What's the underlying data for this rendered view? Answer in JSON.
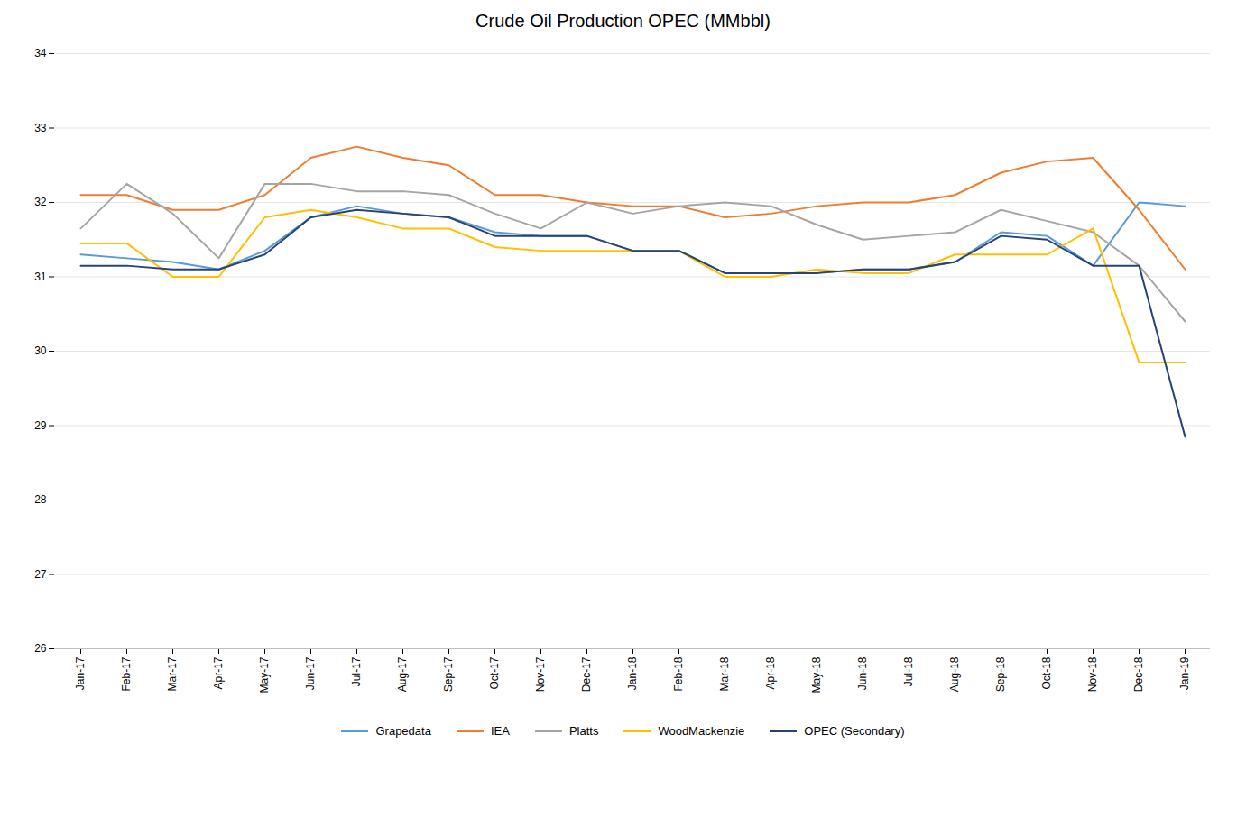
{
  "chart_data": {
    "type": "line",
    "title": "Crude Oil Production OPEC (MMbbl)",
    "categories": [
      "Jan-17",
      "Feb-17",
      "Mar-17",
      "Apr-17",
      "May-17",
      "Jun-17",
      "Jul-17",
      "Aug-17",
      "Sep-17",
      "Oct-17",
      "Nov-17",
      "Dec-17",
      "Jan-18",
      "Feb-18",
      "Mar-18",
      "Apr-18",
      "May-18",
      "Jun-18",
      "Jul-18",
      "Aug-18",
      "Sep-18",
      "Oct-18",
      "Nov-18",
      "Dec-18",
      "Jan-19"
    ],
    "series": [
      {
        "name": "Grapedata",
        "color": "#5B9BD5",
        "values": [
          31.3,
          31.25,
          31.2,
          31.1,
          31.35,
          31.8,
          31.95,
          31.85,
          31.8,
          31.6,
          31.55,
          31.55,
          31.35,
          31.35,
          31.05,
          31.05,
          31.05,
          31.1,
          31.1,
          31.2,
          31.6,
          31.55,
          31.15,
          32.0,
          31.95
        ]
      },
      {
        "name": "IEA",
        "color": "#ED7D31",
        "values": [
          32.1,
          32.1,
          31.9,
          31.9,
          32.1,
          32.6,
          32.75,
          32.6,
          32.5,
          32.1,
          32.1,
          32.0,
          31.95,
          31.95,
          31.8,
          31.85,
          31.95,
          32.0,
          32.0,
          32.1,
          32.4,
          32.55,
          32.6,
          31.9,
          31.1
        ]
      },
      {
        "name": "Platts",
        "color": "#A5A5A5",
        "values": [
          31.65,
          32.25,
          31.85,
          31.25,
          32.25,
          32.25,
          32.15,
          32.15,
          32.1,
          31.85,
          31.65,
          32.0,
          31.85,
          31.95,
          32.0,
          31.95,
          31.7,
          31.5,
          31.55,
          31.6,
          31.9,
          31.75,
          31.6,
          31.15,
          30.4
        ]
      },
      {
        "name": "WoodMackenzie",
        "color": "#FFC000",
        "values": [
          31.45,
          31.45,
          31.0,
          31.0,
          31.8,
          31.9,
          31.8,
          31.65,
          31.65,
          31.4,
          31.35,
          31.35,
          31.35,
          31.35,
          31.0,
          31.0,
          31.1,
          31.05,
          31.05,
          31.3,
          31.3,
          31.3,
          31.65,
          29.85,
          29.85
        ]
      },
      {
        "name": "OPEC (Secondary)",
        "color": "#264478",
        "values": [
          31.15,
          31.15,
          31.1,
          31.1,
          31.3,
          31.8,
          31.9,
          31.85,
          31.8,
          31.55,
          31.55,
          31.55,
          31.35,
          31.35,
          31.05,
          31.05,
          31.05,
          31.1,
          31.1,
          31.2,
          31.55,
          31.5,
          31.15,
          31.15,
          28.85
        ]
      }
    ],
    "ylim": [
      26,
      34
    ],
    "yticks": [
      26,
      27,
      28,
      29,
      30,
      31,
      32,
      33,
      34
    ],
    "grid": true,
    "legend": "bottom"
  }
}
